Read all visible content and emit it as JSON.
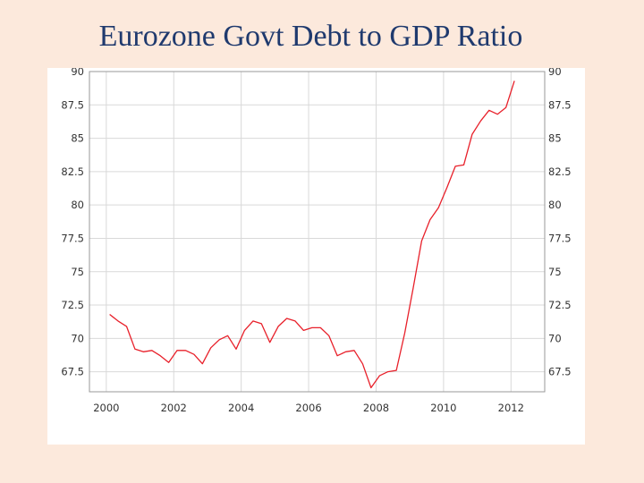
{
  "title": "Eurozone Govt Debt to GDP Ratio",
  "chart_data": {
    "type": "line",
    "title": "Eurozone Govt Debt to GDP Ratio",
    "xlabel": "",
    "ylabel": "",
    "xlim": [
      1999.5,
      2013.0
    ],
    "ylim": [
      66.0,
      90.0
    ],
    "x_ticks": [
      2000,
      2002,
      2004,
      2006,
      2008,
      2010,
      2012
    ],
    "y_ticks": [
      67.5,
      70,
      72.5,
      75,
      77.5,
      80,
      82.5,
      85,
      87.5,
      90
    ],
    "y_tick_labels": [
      "67.5",
      "70",
      "72.5",
      "75",
      "77.5",
      "80",
      "82.5",
      "85",
      "87.5",
      "90"
    ],
    "x_tick_labels": [
      "2000",
      "2002",
      "2004",
      "2006",
      "2008",
      "2010",
      "2012"
    ],
    "grid": true,
    "line_color": "#e8202a",
    "series": [
      {
        "name": "Govt Debt to GDP",
        "x": [
          2000.1,
          2000.35,
          2000.6,
          2000.85,
          2001.1,
          2001.35,
          2001.6,
          2001.85,
          2002.1,
          2002.35,
          2002.6,
          2002.85,
          2003.1,
          2003.35,
          2003.6,
          2003.85,
          2004.1,
          2004.35,
          2004.6,
          2004.85,
          2005.1,
          2005.35,
          2005.6,
          2005.85,
          2006.1,
          2006.35,
          2006.6,
          2006.85,
          2007.1,
          2007.35,
          2007.6,
          2007.85,
          2008.1,
          2008.35,
          2008.6,
          2008.85,
          2009.1,
          2009.35,
          2009.6,
          2009.85,
          2010.1,
          2010.35,
          2010.6,
          2010.85,
          2011.1,
          2011.35,
          2011.6,
          2011.85,
          2012.1
        ],
        "values": [
          71.8,
          71.3,
          70.9,
          69.2,
          69.0,
          69.1,
          68.7,
          68.2,
          69.1,
          69.1,
          68.8,
          68.1,
          69.3,
          69.9,
          70.2,
          69.2,
          70.6,
          71.3,
          71.1,
          69.7,
          70.9,
          71.5,
          71.3,
          70.6,
          70.8,
          70.8,
          70.2,
          68.7,
          69.0,
          69.1,
          68.1,
          66.3,
          67.2,
          67.5,
          67.6,
          70.4,
          73.8,
          77.3,
          78.9,
          79.8,
          81.3,
          82.9,
          83.0,
          85.3,
          86.3,
          87.1,
          86.8,
          87.3,
          89.3
        ]
      }
    ]
  }
}
